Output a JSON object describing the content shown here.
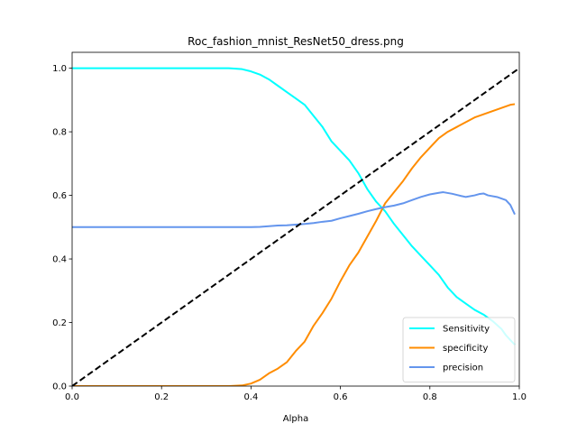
{
  "chart_data": {
    "type": "line",
    "title": "Roc_fashion_mnist_ResNet50_dress.png",
    "xlabel": "Alpha",
    "ylabel": "",
    "xlim": [
      0,
      1
    ],
    "ylim": [
      0,
      1.05
    ],
    "xticks": [
      "0.0",
      "0.2",
      "0.4",
      "0.6",
      "0.8",
      "1.0"
    ],
    "yticks": [
      "0.0",
      "0.2",
      "0.4",
      "0.6",
      "0.8",
      "1.0"
    ],
    "grid": false,
    "legend_position": "lower-right",
    "series": [
      {
        "name": "Sensitivity",
        "color": "#00ffff",
        "x": [
          0.0,
          0.05,
          0.1,
          0.15,
          0.2,
          0.25,
          0.3,
          0.35,
          0.38,
          0.4,
          0.42,
          0.44,
          0.46,
          0.48,
          0.5,
          0.52,
          0.54,
          0.56,
          0.58,
          0.6,
          0.62,
          0.64,
          0.66,
          0.68,
          0.7,
          0.72,
          0.74,
          0.76,
          0.78,
          0.8,
          0.82,
          0.84,
          0.86,
          0.88,
          0.9,
          0.92,
          0.94,
          0.96,
          0.97,
          0.98,
          0.99
        ],
        "y": [
          1.0,
          1.0,
          1.0,
          1.0,
          1.0,
          1.0,
          1.0,
          1.0,
          0.997,
          0.99,
          0.98,
          0.965,
          0.945,
          0.925,
          0.905,
          0.885,
          0.85,
          0.815,
          0.77,
          0.74,
          0.71,
          0.67,
          0.62,
          0.58,
          0.55,
          0.51,
          0.475,
          0.44,
          0.41,
          0.38,
          0.35,
          0.31,
          0.28,
          0.26,
          0.24,
          0.225,
          0.205,
          0.18,
          0.16,
          0.145,
          0.13
        ]
      },
      {
        "name": "specificity",
        "color": "#ff8c00",
        "x": [
          0.0,
          0.05,
          0.1,
          0.15,
          0.2,
          0.25,
          0.3,
          0.35,
          0.38,
          0.4,
          0.42,
          0.44,
          0.46,
          0.48,
          0.5,
          0.52,
          0.54,
          0.56,
          0.58,
          0.6,
          0.62,
          0.64,
          0.66,
          0.68,
          0.7,
          0.72,
          0.74,
          0.76,
          0.78,
          0.8,
          0.82,
          0.84,
          0.86,
          0.88,
          0.9,
          0.92,
          0.94,
          0.96,
          0.97,
          0.98,
          0.99
        ],
        "y": [
          0.0,
          0.0,
          0.0,
          0.0,
          0.0,
          0.0,
          0.0,
          0.0,
          0.002,
          0.008,
          0.02,
          0.04,
          0.055,
          0.075,
          0.11,
          0.14,
          0.19,
          0.23,
          0.275,
          0.33,
          0.38,
          0.42,
          0.47,
          0.52,
          0.575,
          0.61,
          0.645,
          0.685,
          0.72,
          0.75,
          0.78,
          0.8,
          0.815,
          0.83,
          0.845,
          0.855,
          0.865,
          0.875,
          0.88,
          0.885,
          0.887
        ]
      },
      {
        "name": "precision",
        "color": "#6495ed",
        "x": [
          0.0,
          0.05,
          0.1,
          0.15,
          0.2,
          0.25,
          0.3,
          0.35,
          0.4,
          0.42,
          0.44,
          0.46,
          0.48,
          0.5,
          0.52,
          0.54,
          0.56,
          0.58,
          0.6,
          0.62,
          0.64,
          0.66,
          0.68,
          0.7,
          0.72,
          0.74,
          0.76,
          0.78,
          0.8,
          0.82,
          0.83,
          0.85,
          0.87,
          0.88,
          0.9,
          0.91,
          0.92,
          0.93,
          0.95,
          0.97,
          0.98,
          0.99
        ],
        "y": [
          0.5,
          0.5,
          0.5,
          0.5,
          0.5,
          0.5,
          0.5,
          0.5,
          0.5,
          0.501,
          0.503,
          0.505,
          0.506,
          0.508,
          0.51,
          0.513,
          0.517,
          0.52,
          0.528,
          0.535,
          0.542,
          0.55,
          0.557,
          0.563,
          0.568,
          0.575,
          0.585,
          0.595,
          0.603,
          0.608,
          0.61,
          0.605,
          0.598,
          0.595,
          0.6,
          0.604,
          0.606,
          0.6,
          0.595,
          0.585,
          0.57,
          0.54
        ]
      },
      {
        "name": "",
        "color": "#000000",
        "dashed": true,
        "x": [
          0.0,
          1.0
        ],
        "y": [
          0.0,
          1.0
        ]
      }
    ]
  }
}
